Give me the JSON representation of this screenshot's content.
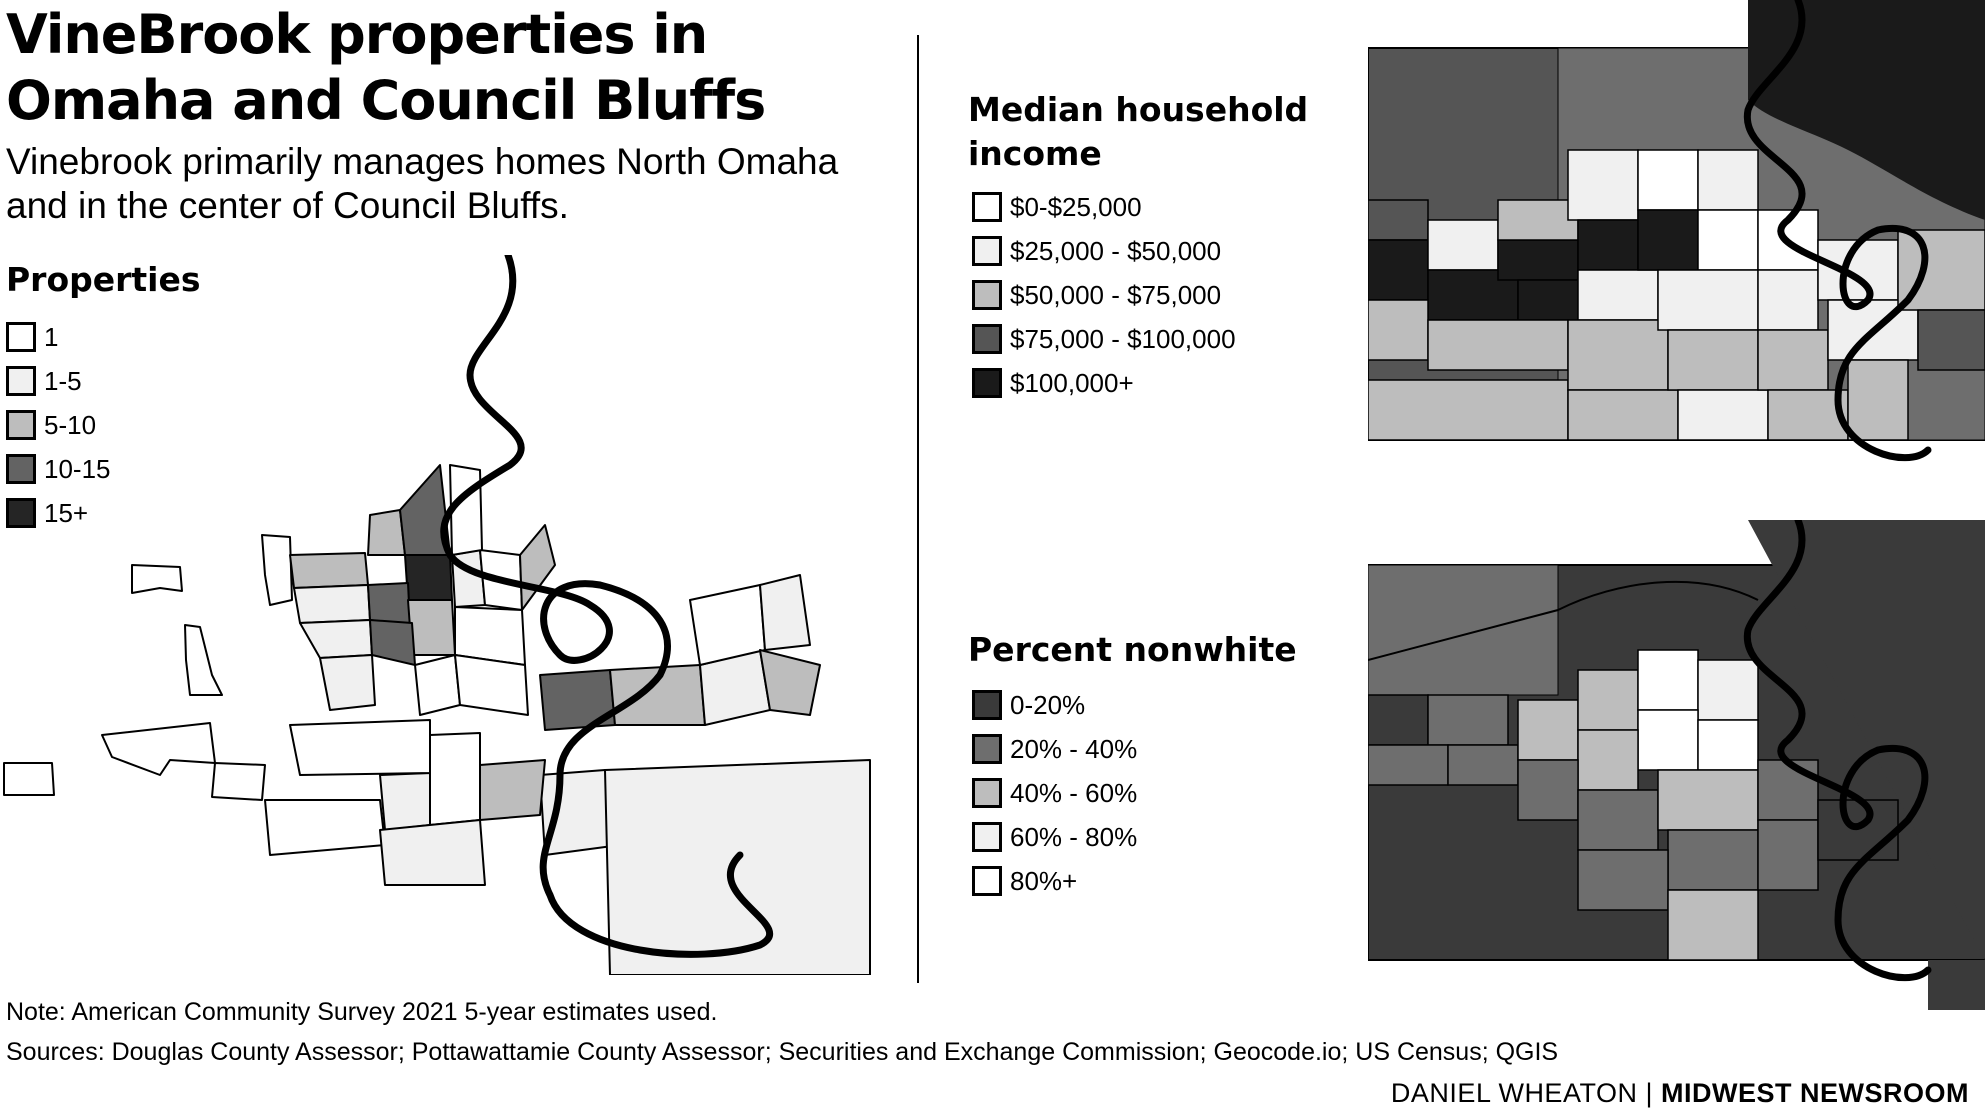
{
  "title": "VineBrook properties in Omaha and Council Bluffs",
  "subtitle": "Vinebrook primarily manages homes North Omaha and in the center of Council Bluffs.",
  "legends": {
    "properties": {
      "title": "Properties",
      "items": [
        {
          "label": "1",
          "color": "#ffffff"
        },
        {
          "label": "1-5",
          "color": "#f0f0f0"
        },
        {
          "label": "5-10",
          "color": "#bdbdbd"
        },
        {
          "label": "10-15",
          "color": "#636363"
        },
        {
          "label": "15+",
          "color": "#252525"
        }
      ]
    },
    "income": {
      "title": "Median household income",
      "items": [
        {
          "label": "$0-$25,000",
          "color": "#ffffff"
        },
        {
          "label": "$25,000 - $50,000",
          "color": "#f0f0f0"
        },
        {
          "label": "$50,000 - $75,000",
          "color": "#bdbdbd"
        },
        {
          "label": "$75,000 - $100,000",
          "color": "#555555"
        },
        {
          "label": "$100,000+",
          "color": "#1a1a1a"
        }
      ]
    },
    "nonwhite": {
      "title": "Percent nonwhite",
      "items": [
        {
          "label": "0-20%",
          "color": "#3a3a3a"
        },
        {
          "label": "20% - 40%",
          "color": "#6e6e6e"
        },
        {
          "label": "40% - 60%",
          "color": "#bdbdbd"
        },
        {
          "label": "60% - 80%",
          "color": "#f0f0f0"
        },
        {
          "label": "80%+",
          "color": "#ffffff"
        }
      ]
    }
  },
  "note": "Note: American Community Survey 2021 5-year estimates used.",
  "sources": "Sources: Douglas County Assessor; Pottawattamie County Assessor; Securities and Exchange Commission; Geocode.io; US Census; QGIS",
  "byline": {
    "author": "DANIEL WHEATON",
    "separator": "|",
    "org": "MIDWEST NEWSROOM"
  }
}
